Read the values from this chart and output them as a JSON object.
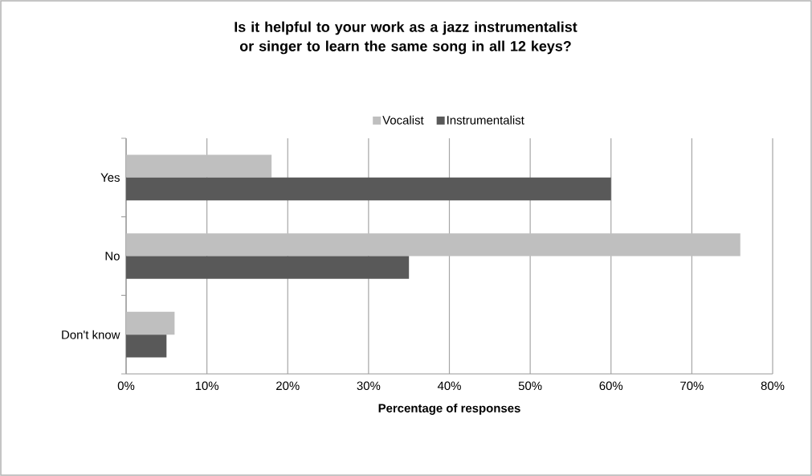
{
  "chart_data": {
    "type": "bar",
    "orientation": "horizontal",
    "title": "Is it helpful to your work as a jazz instrumentalist or singer to learn the same song in all 12 keys?",
    "xlabel": "Percentage of responses",
    "categories": [
      "Yes",
      "No",
      "Don't know"
    ],
    "series": [
      {
        "name": "Vocalist",
        "color": "#bfbfbf",
        "values": [
          18,
          76,
          6
        ]
      },
      {
        "name": "Instrumentalist",
        "color": "#595959",
        "values": [
          60,
          35,
          5
        ]
      }
    ],
    "xlim": [
      0,
      80
    ],
    "xticks": [
      {
        "value": 0,
        "label": "0%"
      },
      {
        "value": 10,
        "label": "10%"
      },
      {
        "value": 20,
        "label": "20%"
      },
      {
        "value": 30,
        "label": "30%"
      },
      {
        "value": 40,
        "label": "40%"
      },
      {
        "value": 50,
        "label": "50%"
      },
      {
        "value": 60,
        "label": "60%"
      },
      {
        "value": 70,
        "label": "70%"
      },
      {
        "value": 80,
        "label": "80%"
      }
    ],
    "grid": "x",
    "legend": "top"
  }
}
